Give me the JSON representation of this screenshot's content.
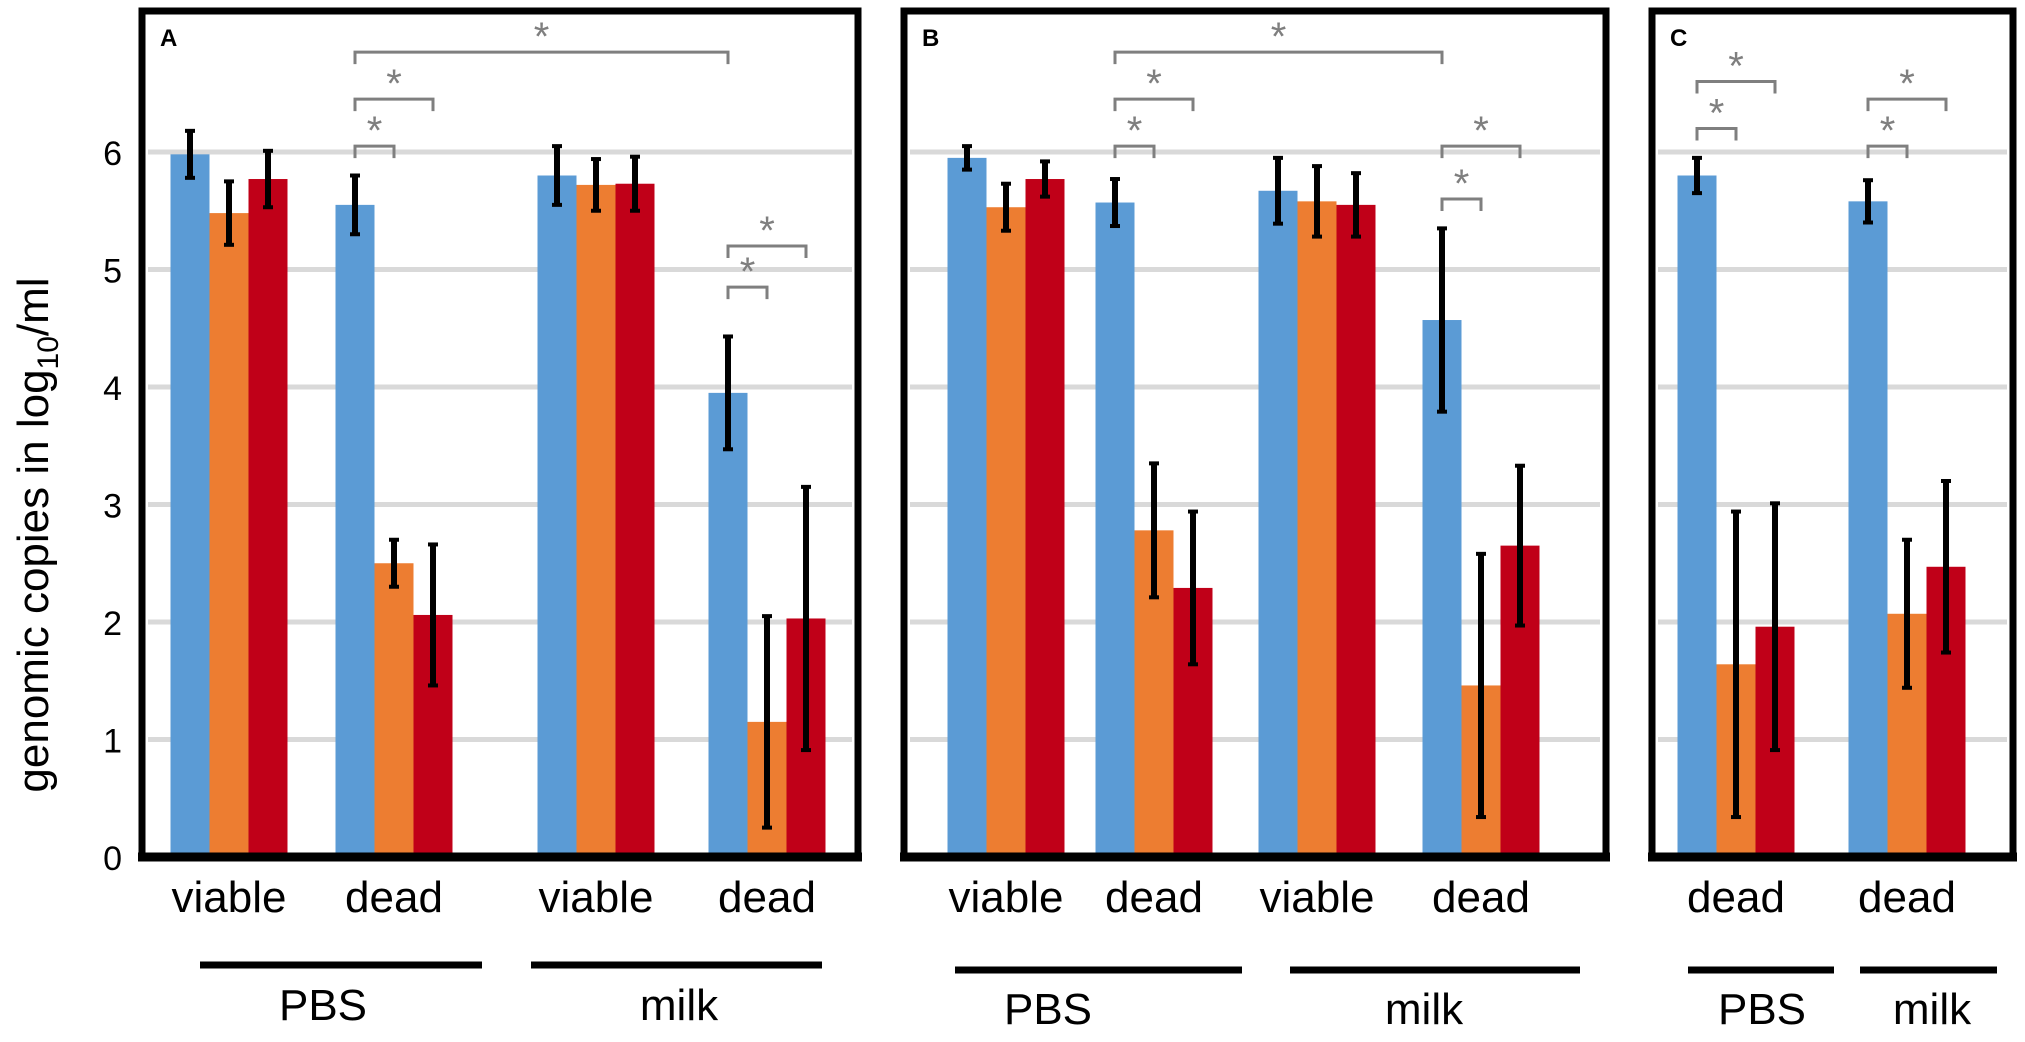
{
  "figure": {
    "ylabel": "genomic copies in log",
    "ylabel_sub": "10",
    "ylabel_unit": "/ml",
    "ylim": [
      0,
      7
    ],
    "yticks": [
      "0",
      "1",
      "2",
      "3",
      "4",
      "5",
      "6"
    ],
    "significance_marker": "*"
  },
  "colors": {
    "series0": "#5b9bd5",
    "series1": "#ed7d31",
    "series2": "#c00018",
    "grid": "#d9d9d9",
    "bracket": "#7f7f7f",
    "frame": "#000000"
  },
  "chart_data": [
    {
      "type": "bar",
      "panel": "A",
      "categories": [
        "viable",
        "dead",
        "viable",
        "dead"
      ],
      "groups": [
        {
          "label": "PBS",
          "categories": [
            0,
            1
          ]
        },
        {
          "label": "milk",
          "categories": [
            2,
            3
          ]
        }
      ],
      "series": [
        {
          "name": "series 1 (blue)",
          "values": [
            5.98,
            5.55,
            5.8,
            3.95
          ],
          "errors": [
            0.2,
            0.25,
            0.25,
            0.48
          ]
        },
        {
          "name": "series 2 (orange)",
          "values": [
            5.48,
            2.5,
            5.72,
            1.15
          ],
          "errors": [
            0.27,
            0.2,
            0.22,
            0.9
          ]
        },
        {
          "name": "series 3 (red)",
          "values": [
            5.77,
            2.06,
            5.73,
            2.03
          ],
          "errors": [
            0.24,
            0.6,
            0.23,
            1.12
          ]
        }
      ],
      "significance": [
        {
          "from": [
            1,
            0
          ],
          "to": [
            1,
            1
          ],
          "level": 6.05
        },
        {
          "from": [
            1,
            0
          ],
          "to": [
            1,
            2
          ],
          "level": 6.45
        },
        {
          "from": [
            1,
            0
          ],
          "to": [
            3,
            0
          ],
          "level": 6.85
        },
        {
          "from": [
            3,
            0
          ],
          "to": [
            3,
            1
          ],
          "level": 4.85
        },
        {
          "from": [
            3,
            0
          ],
          "to": [
            3,
            2
          ],
          "level": 5.2
        }
      ]
    },
    {
      "type": "bar",
      "panel": "B",
      "categories": [
        "viable",
        "dead",
        "viable",
        "dead"
      ],
      "groups": [
        {
          "label": "PBS",
          "categories": [
            0,
            1
          ]
        },
        {
          "label": "milk",
          "categories": [
            2,
            3
          ]
        }
      ],
      "series": [
        {
          "name": "series 1 (blue)",
          "values": [
            5.95,
            5.57,
            5.67,
            4.57
          ],
          "errors": [
            0.1,
            0.2,
            0.28,
            0.78
          ]
        },
        {
          "name": "series 2 (orange)",
          "values": [
            5.53,
            2.78,
            5.58,
            1.46
          ],
          "errors": [
            0.2,
            0.57,
            0.3,
            1.12
          ]
        },
        {
          "name": "series 3 (red)",
          "values": [
            5.77,
            2.29,
            5.55,
            2.65
          ],
          "errors": [
            0.15,
            0.65,
            0.27,
            0.68
          ]
        }
      ],
      "significance": [
        {
          "from": [
            1,
            0
          ],
          "to": [
            1,
            1
          ],
          "level": 6.05
        },
        {
          "from": [
            1,
            0
          ],
          "to": [
            1,
            2
          ],
          "level": 6.45
        },
        {
          "from": [
            1,
            0
          ],
          "to": [
            3,
            0
          ],
          "level": 6.85
        },
        {
          "from": [
            3,
            0
          ],
          "to": [
            3,
            1
          ],
          "level": 5.6
        },
        {
          "from": [
            3,
            0
          ],
          "to": [
            3,
            2
          ],
          "level": 6.05
        }
      ]
    },
    {
      "type": "bar",
      "panel": "C",
      "categories": [
        "dead",
        "dead"
      ],
      "groups": [
        {
          "label": "PBS",
          "categories": [
            0
          ]
        },
        {
          "label": "milk",
          "categories": [
            1
          ]
        }
      ],
      "series": [
        {
          "name": "series 1 (blue)",
          "values": [
            5.8,
            5.58
          ],
          "errors": [
            0.15,
            0.18
          ]
        },
        {
          "name": "series 2 (orange)",
          "values": [
            1.64,
            2.07
          ],
          "errors": [
            1.3,
            0.63
          ]
        },
        {
          "name": "series 3 (red)",
          "values": [
            1.96,
            2.47
          ],
          "errors": [
            1.05,
            0.73
          ]
        }
      ],
      "significance": [
        {
          "from": [
            0,
            0
          ],
          "to": [
            0,
            1
          ],
          "level": 6.2
        },
        {
          "from": [
            0,
            0
          ],
          "to": [
            0,
            2
          ],
          "level": 6.6
        },
        {
          "from": [
            1,
            0
          ],
          "to": [
            1,
            1
          ],
          "level": 6.05
        },
        {
          "from": [
            1,
            0
          ],
          "to": [
            1,
            2
          ],
          "level": 6.45
        }
      ]
    }
  ]
}
